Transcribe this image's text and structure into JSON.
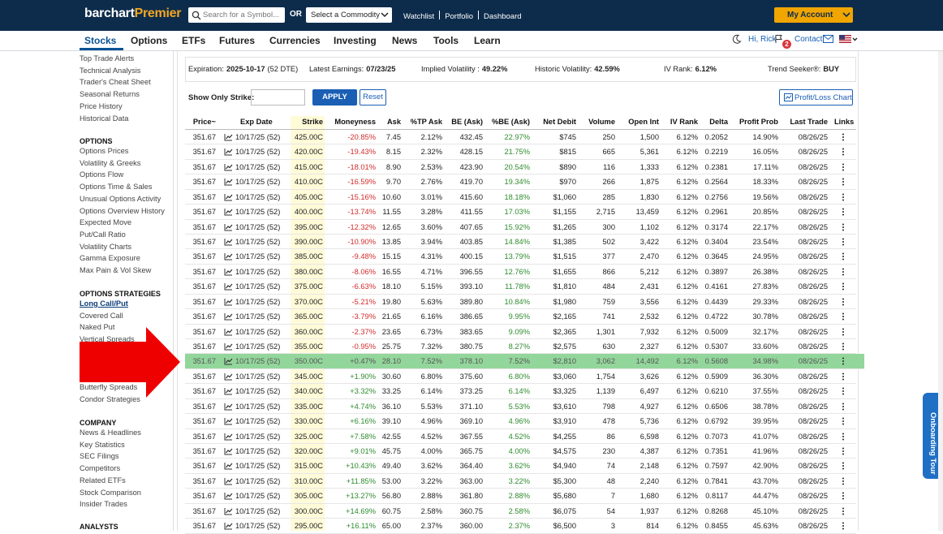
{
  "header": {
    "logo": "barchart",
    "logo_premier": "Premier",
    "search_placeholder": "Search for a Symbol...",
    "or": "OR",
    "commodity_select": "Select a Commodity",
    "links": [
      "Watchlist",
      "Portfolio",
      "Dashboard"
    ],
    "account": "My Account"
  },
  "nav": {
    "tabs": [
      "Stocks",
      "Options",
      "ETFs",
      "Futures",
      "Currencies",
      "Investing",
      "News",
      "Tools",
      "Learn"
    ],
    "greeting": "Hi, Rick",
    "notifications": "2",
    "contact": "Contact"
  },
  "sidebar": {
    "top_items": [
      "Top Trade Alerts",
      "Technical Analysis",
      "Trader's Cheat Sheet",
      "Seasonal Returns",
      "Price History",
      "Historical Data"
    ],
    "sections": [
      {
        "title": "OPTIONS",
        "items": [
          "Options Prices",
          "Volatility & Greeks",
          "Options Flow",
          "Options Time & Sales",
          "Unusual Options Activity",
          "Options Overview History",
          "Expected Move",
          "Put/Call Ratio",
          "Volatility Charts",
          "Gamma Exposure",
          "Max Pain & Vol Skew"
        ]
      },
      {
        "title": "OPTIONS STRATEGIES",
        "items": [
          "Long Call/Put",
          "Covered Call",
          "Naked Put",
          "Vertical Spreads",
          "Butterfly Spreads",
          "Condor Strategies"
        ]
      },
      {
        "title": "COMPANY",
        "items": [
          "News & Headlines",
          "Key Statistics",
          "SEC Filings",
          "Competitors",
          "Related ETFs",
          "Stock Comparison",
          "Insider Trades"
        ]
      },
      {
        "title": "ANALYSTS",
        "items": []
      }
    ]
  },
  "info_bar": [
    {
      "label": "Expiration:",
      "value": "2025-10-17",
      "note": "(52 DTE)"
    },
    {
      "label": "Latest Earnings:",
      "value": "07/23/25"
    },
    {
      "label": "Implied Volatility :",
      "value": "49.22%"
    },
    {
      "label": "Historic Volatility:",
      "value": "42.59%"
    },
    {
      "label": "IV Rank:",
      "value": "6.12%"
    },
    {
      "label": "Trend Seeker®:",
      "value": "BUY"
    }
  ],
  "filter": {
    "label": "Show Only Strike:",
    "apply": "APPLY",
    "reset": "Reset",
    "chart_button": "Profit/Loss Chart"
  },
  "table": {
    "headers": [
      "Price~",
      "Exp Date",
      "Strike",
      "Moneyness",
      "Ask",
      "%TP Ask",
      "BE (Ask)",
      "%BE (Ask)",
      "Net Debit",
      "Volume",
      "Open Int",
      "IV Rank",
      "Delta",
      "Profit Prob",
      "Last Trade",
      "Links"
    ],
    "highlighted_row": 15,
    "rows": [
      [
        "351.67",
        "10/17/25 (52)",
        "425.00C",
        "-20.85%",
        "7.45",
        "2.12%",
        "432.45",
        "22.97%",
        "$745",
        "250",
        "1,500",
        "6.12%",
        "0.2052",
        "14.90%",
        "08/26/25"
      ],
      [
        "351.67",
        "10/17/25 (52)",
        "420.00C",
        "-19.43%",
        "8.15",
        "2.32%",
        "428.15",
        "21.75%",
        "$815",
        "665",
        "5,361",
        "6.12%",
        "0.2219",
        "16.05%",
        "08/26/25"
      ],
      [
        "351.67",
        "10/17/25 (52)",
        "415.00C",
        "-18.01%",
        "8.90",
        "2.53%",
        "423.90",
        "20.54%",
        "$890",
        "116",
        "1,333",
        "6.12%",
        "0.2381",
        "17.11%",
        "08/26/25"
      ],
      [
        "351.67",
        "10/17/25 (52)",
        "410.00C",
        "-16.59%",
        "9.70",
        "2.76%",
        "419.70",
        "19.34%",
        "$970",
        "266",
        "1,875",
        "6.12%",
        "0.2564",
        "18.33%",
        "08/26/25"
      ],
      [
        "351.67",
        "10/17/25 (52)",
        "405.00C",
        "-15.16%",
        "10.60",
        "3.01%",
        "415.60",
        "18.18%",
        "$1,060",
        "285",
        "1,830",
        "6.12%",
        "0.2756",
        "19.56%",
        "08/26/25"
      ],
      [
        "351.67",
        "10/17/25 (52)",
        "400.00C",
        "-13.74%",
        "11.55",
        "3.28%",
        "411.55",
        "17.03%",
        "$1,155",
        "2,715",
        "13,459",
        "6.12%",
        "0.2961",
        "20.85%",
        "08/26/25"
      ],
      [
        "351.67",
        "10/17/25 (52)",
        "395.00C",
        "-12.32%",
        "12.65",
        "3.60%",
        "407.65",
        "15.92%",
        "$1,265",
        "300",
        "1,102",
        "6.12%",
        "0.3174",
        "22.17%",
        "08/26/25"
      ],
      [
        "351.67",
        "10/17/25 (52)",
        "390.00C",
        "-10.90%",
        "13.85",
        "3.94%",
        "403.85",
        "14.84%",
        "$1,385",
        "502",
        "3,422",
        "6.12%",
        "0.3404",
        "23.54%",
        "08/26/25"
      ],
      [
        "351.67",
        "10/17/25 (52)",
        "385.00C",
        "-9.48%",
        "15.15",
        "4.31%",
        "400.15",
        "13.79%",
        "$1,515",
        "377",
        "2,470",
        "6.12%",
        "0.3645",
        "24.95%",
        "08/26/25"
      ],
      [
        "351.67",
        "10/17/25 (52)",
        "380.00C",
        "-8.06%",
        "16.55",
        "4.71%",
        "396.55",
        "12.76%",
        "$1,655",
        "866",
        "5,212",
        "6.12%",
        "0.3897",
        "26.38%",
        "08/26/25"
      ],
      [
        "351.67",
        "10/17/25 (52)",
        "375.00C",
        "-6.63%",
        "18.10",
        "5.15%",
        "393.10",
        "11.78%",
        "$1,810",
        "484",
        "2,431",
        "6.12%",
        "0.4161",
        "27.83%",
        "08/26/25"
      ],
      [
        "351.67",
        "10/17/25 (52)",
        "370.00C",
        "-5.21%",
        "19.80",
        "5.63%",
        "389.80",
        "10.84%",
        "$1,980",
        "759",
        "3,556",
        "6.12%",
        "0.4439",
        "29.33%",
        "08/26/25"
      ],
      [
        "351.67",
        "10/17/25 (52)",
        "365.00C",
        "-3.79%",
        "21.65",
        "6.16%",
        "386.65",
        "9.95%",
        "$2,165",
        "741",
        "2,532",
        "6.12%",
        "0.4722",
        "30.78%",
        "08/26/25"
      ],
      [
        "351.67",
        "10/17/25 (52)",
        "360.00C",
        "-2.37%",
        "23.65",
        "6.73%",
        "383.65",
        "9.09%",
        "$2,365",
        "1,301",
        "7,932",
        "6.12%",
        "0.5009",
        "32.17%",
        "08/26/25"
      ],
      [
        "351.67",
        "10/17/25 (52)",
        "355.00C",
        "-0.95%",
        "25.75",
        "7.32%",
        "380.75",
        "8.27%",
        "$2,575",
        "630",
        "2,327",
        "6.12%",
        "0.5307",
        "33.60%",
        "08/26/25"
      ],
      [
        "351.67",
        "10/17/25 (52)",
        "350.00C",
        "+0.47%",
        "28.10",
        "7.52%",
        "378.10",
        "7.52%",
        "$2,810",
        "3,062",
        "14,492",
        "6.12%",
        "0.5608",
        "34.98%",
        "08/26/25"
      ],
      [
        "351.67",
        "10/17/25 (52)",
        "345.00C",
        "+1.90%",
        "30.60",
        "6.80%",
        "375.60",
        "6.80%",
        "$3,060",
        "1,754",
        "3,626",
        "6.12%",
        "0.5909",
        "36.30%",
        "08/26/25"
      ],
      [
        "351.67",
        "10/17/25 (52)",
        "340.00C",
        "+3.32%",
        "33.25",
        "6.14%",
        "373.25",
        "6.14%",
        "$3,325",
        "1,139",
        "6,497",
        "6.12%",
        "0.6210",
        "37.55%",
        "08/26/25"
      ],
      [
        "351.67",
        "10/17/25 (52)",
        "335.00C",
        "+4.74%",
        "36.10",
        "5.53%",
        "371.10",
        "5.53%",
        "$3,610",
        "798",
        "4,927",
        "6.12%",
        "0.6506",
        "38.78%",
        "08/26/25"
      ],
      [
        "351.67",
        "10/17/25 (52)",
        "330.00C",
        "+6.16%",
        "39.10",
        "4.96%",
        "369.10",
        "4.96%",
        "$3,910",
        "478",
        "5,736",
        "6.12%",
        "0.6792",
        "39.95%",
        "08/26/25"
      ],
      [
        "351.67",
        "10/17/25 (52)",
        "325.00C",
        "+7.58%",
        "42.55",
        "4.52%",
        "367.55",
        "4.52%",
        "$4,255",
        "86",
        "6,598",
        "6.12%",
        "0.7073",
        "41.07%",
        "08/26/25"
      ],
      [
        "351.67",
        "10/17/25 (52)",
        "320.00C",
        "+9.01%",
        "45.75",
        "4.00%",
        "365.75",
        "4.00%",
        "$4,575",
        "230",
        "4,387",
        "6.12%",
        "0.7351",
        "41.96%",
        "08/26/25"
      ],
      [
        "351.67",
        "10/17/25 (52)",
        "315.00C",
        "+10.43%",
        "49.40",
        "3.62%",
        "364.40",
        "3.62%",
        "$4,940",
        "74",
        "2,148",
        "6.12%",
        "0.7597",
        "42.90%",
        "08/26/25"
      ],
      [
        "351.67",
        "10/17/25 (52)",
        "310.00C",
        "+11.85%",
        "53.00",
        "3.22%",
        "363.00",
        "3.22%",
        "$5,300",
        "48",
        "2,240",
        "6.12%",
        "0.7841",
        "43.70%",
        "08/26/25"
      ],
      [
        "351.67",
        "10/17/25 (52)",
        "305.00C",
        "+13.27%",
        "56.80",
        "2.88%",
        "361.80",
        "2.88%",
        "$5,680",
        "7",
        "1,680",
        "6.12%",
        "0.8117",
        "44.47%",
        "08/26/25"
      ],
      [
        "351.67",
        "10/17/25 (52)",
        "300.00C",
        "+14.69%",
        "60.75",
        "2.58%",
        "360.75",
        "2.58%",
        "$6,075",
        "54",
        "1,937",
        "6.12%",
        "0.8268",
        "45.10%",
        "08/26/25"
      ],
      [
        "351.67",
        "10/17/25 (52)",
        "295.00C",
        "+16.11%",
        "65.00",
        "2.37%",
        "360.00",
        "2.37%",
        "$6,500",
        "3",
        "814",
        "6.12%",
        "0.8455",
        "45.63%",
        "08/26/25"
      ]
    ]
  },
  "onboarding": "Onboarding Tour"
}
